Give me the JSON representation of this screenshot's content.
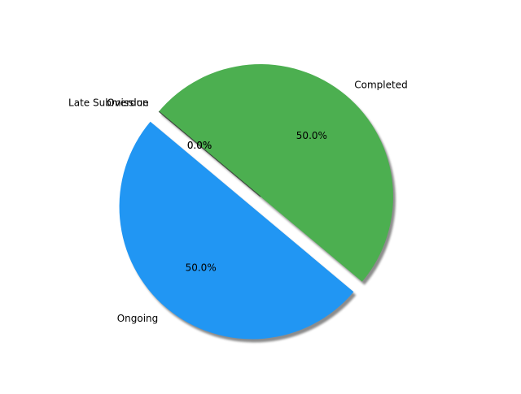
{
  "chart_data": {
    "type": "pie",
    "labels": [
      "Ongoing",
      "Completed",
      "Overdue",
      "Late Submission"
    ],
    "values": [
      50,
      50,
      0,
      0
    ],
    "percent_labels": [
      "50.0%",
      "50.0%",
      "0.0%",
      "0.0%"
    ],
    "colors": [
      "#2196F3",
      "#4CAF50",
      "#FF9800",
      "#F44336"
    ],
    "exploded": "Ongoing",
    "shadow": true,
    "start_angle": 140,
    "direction": "counterclockwise"
  }
}
